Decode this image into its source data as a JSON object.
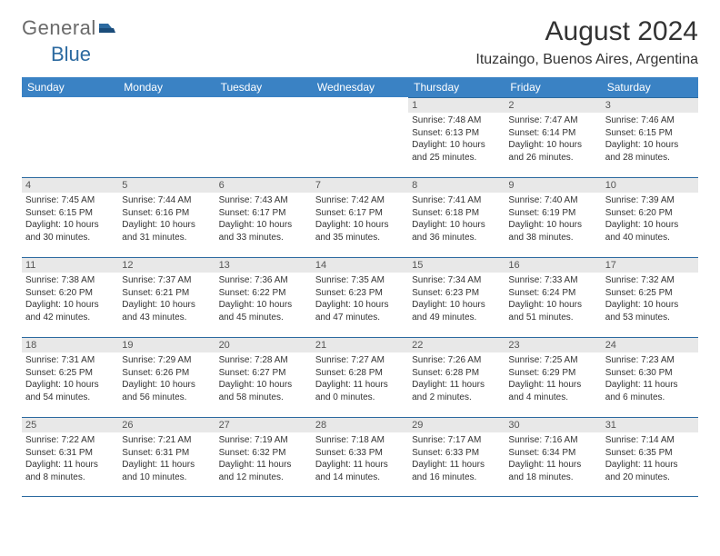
{
  "brand": {
    "part1": "General",
    "part2": "Blue"
  },
  "title": "August 2024",
  "location": "Ituzaingo, Buenos Aires, Argentina",
  "colors": {
    "header_bg": "#3a82c4",
    "border": "#2c6aa0",
    "daynum_bg": "#e8e8e8",
    "text": "#333333",
    "logo_gray": "#6a6a6a",
    "logo_blue": "#2c6aa0"
  },
  "day_headers": [
    "Sunday",
    "Monday",
    "Tuesday",
    "Wednesday",
    "Thursday",
    "Friday",
    "Saturday"
  ],
  "weeks": [
    [
      null,
      null,
      null,
      null,
      {
        "n": "1",
        "sunrise": "7:48 AM",
        "sunset": "6:13 PM",
        "daylight": "10 hours and 25 minutes."
      },
      {
        "n": "2",
        "sunrise": "7:47 AM",
        "sunset": "6:14 PM",
        "daylight": "10 hours and 26 minutes."
      },
      {
        "n": "3",
        "sunrise": "7:46 AM",
        "sunset": "6:15 PM",
        "daylight": "10 hours and 28 minutes."
      }
    ],
    [
      {
        "n": "4",
        "sunrise": "7:45 AM",
        "sunset": "6:15 PM",
        "daylight": "10 hours and 30 minutes."
      },
      {
        "n": "5",
        "sunrise": "7:44 AM",
        "sunset": "6:16 PM",
        "daylight": "10 hours and 31 minutes."
      },
      {
        "n": "6",
        "sunrise": "7:43 AM",
        "sunset": "6:17 PM",
        "daylight": "10 hours and 33 minutes."
      },
      {
        "n": "7",
        "sunrise": "7:42 AM",
        "sunset": "6:17 PM",
        "daylight": "10 hours and 35 minutes."
      },
      {
        "n": "8",
        "sunrise": "7:41 AM",
        "sunset": "6:18 PM",
        "daylight": "10 hours and 36 minutes."
      },
      {
        "n": "9",
        "sunrise": "7:40 AM",
        "sunset": "6:19 PM",
        "daylight": "10 hours and 38 minutes."
      },
      {
        "n": "10",
        "sunrise": "7:39 AM",
        "sunset": "6:20 PM",
        "daylight": "10 hours and 40 minutes."
      }
    ],
    [
      {
        "n": "11",
        "sunrise": "7:38 AM",
        "sunset": "6:20 PM",
        "daylight": "10 hours and 42 minutes."
      },
      {
        "n": "12",
        "sunrise": "7:37 AM",
        "sunset": "6:21 PM",
        "daylight": "10 hours and 43 minutes."
      },
      {
        "n": "13",
        "sunrise": "7:36 AM",
        "sunset": "6:22 PM",
        "daylight": "10 hours and 45 minutes."
      },
      {
        "n": "14",
        "sunrise": "7:35 AM",
        "sunset": "6:23 PM",
        "daylight": "10 hours and 47 minutes."
      },
      {
        "n": "15",
        "sunrise": "7:34 AM",
        "sunset": "6:23 PM",
        "daylight": "10 hours and 49 minutes."
      },
      {
        "n": "16",
        "sunrise": "7:33 AM",
        "sunset": "6:24 PM",
        "daylight": "10 hours and 51 minutes."
      },
      {
        "n": "17",
        "sunrise": "7:32 AM",
        "sunset": "6:25 PM",
        "daylight": "10 hours and 53 minutes."
      }
    ],
    [
      {
        "n": "18",
        "sunrise": "7:31 AM",
        "sunset": "6:25 PM",
        "daylight": "10 hours and 54 minutes."
      },
      {
        "n": "19",
        "sunrise": "7:29 AM",
        "sunset": "6:26 PM",
        "daylight": "10 hours and 56 minutes."
      },
      {
        "n": "20",
        "sunrise": "7:28 AM",
        "sunset": "6:27 PM",
        "daylight": "10 hours and 58 minutes."
      },
      {
        "n": "21",
        "sunrise": "7:27 AM",
        "sunset": "6:28 PM",
        "daylight": "11 hours and 0 minutes."
      },
      {
        "n": "22",
        "sunrise": "7:26 AM",
        "sunset": "6:28 PM",
        "daylight": "11 hours and 2 minutes."
      },
      {
        "n": "23",
        "sunrise": "7:25 AM",
        "sunset": "6:29 PM",
        "daylight": "11 hours and 4 minutes."
      },
      {
        "n": "24",
        "sunrise": "7:23 AM",
        "sunset": "6:30 PM",
        "daylight": "11 hours and 6 minutes."
      }
    ],
    [
      {
        "n": "25",
        "sunrise": "7:22 AM",
        "sunset": "6:31 PM",
        "daylight": "11 hours and 8 minutes."
      },
      {
        "n": "26",
        "sunrise": "7:21 AM",
        "sunset": "6:31 PM",
        "daylight": "11 hours and 10 minutes."
      },
      {
        "n": "27",
        "sunrise": "7:19 AM",
        "sunset": "6:32 PM",
        "daylight": "11 hours and 12 minutes."
      },
      {
        "n": "28",
        "sunrise": "7:18 AM",
        "sunset": "6:33 PM",
        "daylight": "11 hours and 14 minutes."
      },
      {
        "n": "29",
        "sunrise": "7:17 AM",
        "sunset": "6:33 PM",
        "daylight": "11 hours and 16 minutes."
      },
      {
        "n": "30",
        "sunrise": "7:16 AM",
        "sunset": "6:34 PM",
        "daylight": "11 hours and 18 minutes."
      },
      {
        "n": "31",
        "sunrise": "7:14 AM",
        "sunset": "6:35 PM",
        "daylight": "11 hours and 20 minutes."
      }
    ]
  ],
  "labels": {
    "sunrise": "Sunrise: ",
    "sunset": "Sunset: ",
    "daylight": "Daylight: "
  }
}
